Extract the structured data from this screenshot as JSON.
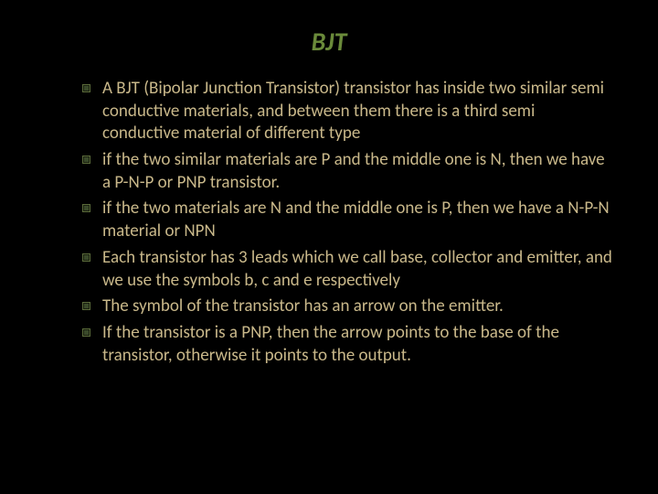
{
  "title": "BJT",
  "title_color": "#6a8a3a",
  "title_fontsize": 28,
  "title_style": "bold italic",
  "text_color": "#c9b88a",
  "text_fontsize": 19,
  "background_color": "#000000",
  "bullet_marker_color": "#5a6a3a",
  "bullets": [
    "A BJT (Bipolar Junction Transistor) transistor has inside two similar semi conductive materials, and between them there is a third semi conductive material of different type",
    "if the two similar materials are P and the middle one is N, then we have a P-N-P or PNP transistor.",
    "if the two materials are N and the middle one is P, then we have a N-P-N material or NPN",
    "Each transistor has 3 leads which we call base, collector and emitter, and we use the symbols b, c and e respectively",
    "The symbol of the transistor has an arrow on the emitter.",
    "If the transistor is a PNP, then the arrow points to the base of the transistor, otherwise it points to the output."
  ]
}
